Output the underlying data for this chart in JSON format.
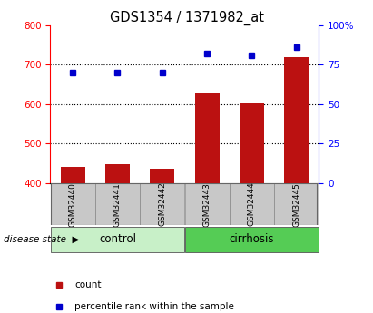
{
  "title": "GDS1354 / 1371982_at",
  "samples": [
    "GSM32440",
    "GSM32441",
    "GSM32442",
    "GSM32443",
    "GSM32444",
    "GSM32445"
  ],
  "counts": [
    440,
    448,
    437,
    630,
    605,
    718
  ],
  "percentile_ranks": [
    70,
    70,
    70,
    82,
    81,
    86
  ],
  "groups": [
    {
      "label": "control",
      "indices": [
        0,
        1,
        2
      ],
      "color": "#c8f0c8"
    },
    {
      "label": "cirrhosis",
      "indices": [
        3,
        4,
        5
      ],
      "color": "#55cc55"
    }
  ],
  "bar_color": "#bb1111",
  "dot_color": "#0000cc",
  "ylim_left": [
    400,
    800
  ],
  "ylim_right": [
    0,
    100
  ],
  "yticks_left": [
    400,
    500,
    600,
    700,
    800
  ],
  "yticks_right": [
    0,
    25,
    50,
    75,
    100
  ],
  "ytick_labels_right": [
    "0",
    "25",
    "50",
    "75",
    "100%"
  ],
  "grid_values": [
    500,
    600,
    700
  ],
  "title_fontsize": 10.5,
  "tick_fontsize": 7.5,
  "sample_fontsize": 6.5,
  "group_fontsize": 8.5,
  "legend_fontsize": 7.5,
  "bar_width": 0.55,
  "disease_state_label": "disease state",
  "legend_items": [
    {
      "label": "count",
      "color": "#bb1111"
    },
    {
      "label": "percentile rank within the sample",
      "color": "#0000cc"
    }
  ],
  "gray_box_color": "#c8c8c8",
  "plot_bg": "#ffffff"
}
